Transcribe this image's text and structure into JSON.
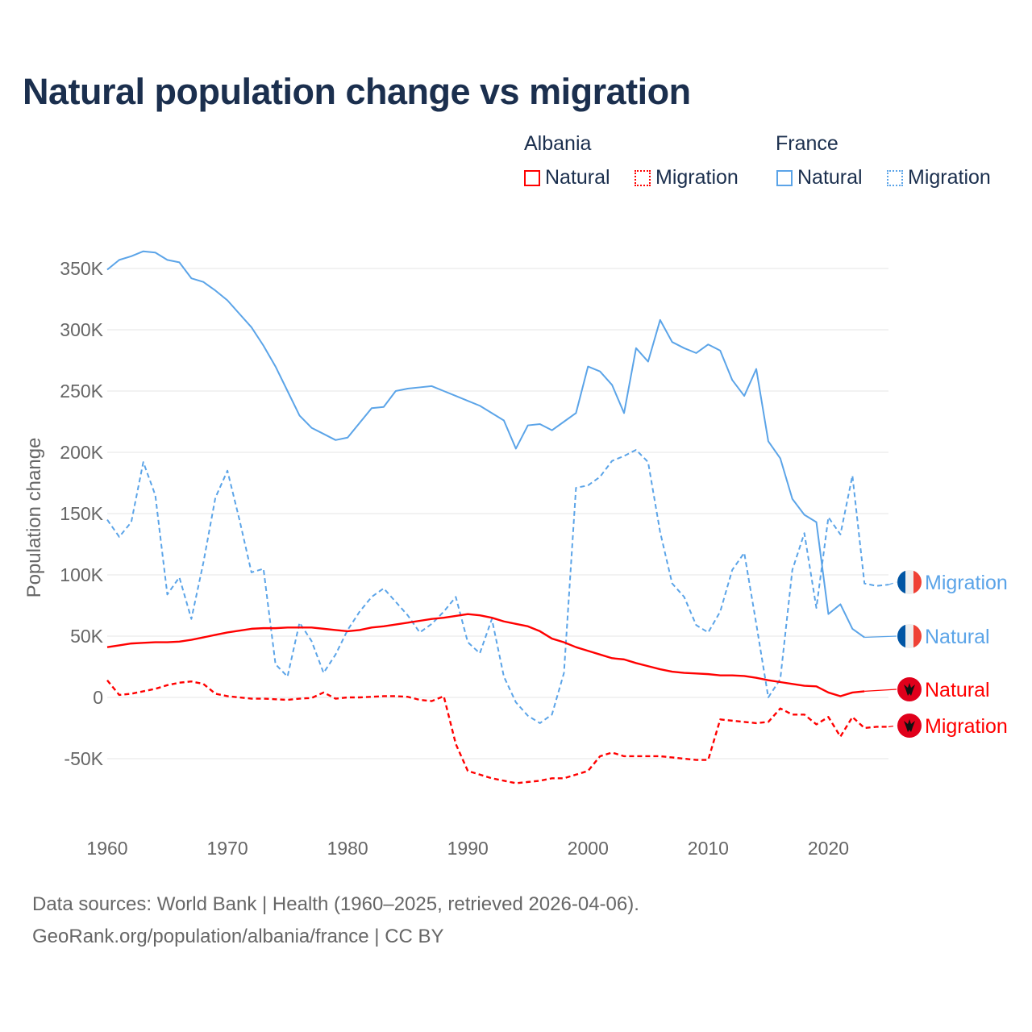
{
  "chart_data": {
    "type": "line",
    "title": "Natural population change vs migration",
    "xlabel": "",
    "ylabel": "Population change",
    "xlim": [
      1960,
      2025
    ],
    "ylim": [
      -100000,
      380000
    ],
    "x_ticks": [
      1960,
      1970,
      1980,
      1990,
      2000,
      2010,
      2020
    ],
    "x_tick_labels": [
      "1960",
      "1970",
      "1980",
      "1990",
      "2000",
      "2010",
      "2020"
    ],
    "y_ticks": [
      -50000,
      0,
      50000,
      100000,
      150000,
      200000,
      250000,
      300000,
      350000
    ],
    "y_tick_labels": [
      "-50K",
      "0",
      "50K",
      "100K",
      "150K",
      "200K",
      "250K",
      "300K",
      "350K"
    ],
    "grid": true,
    "legend_placement": "top-right",
    "legend": {
      "groups": [
        {
          "name": "Albania",
          "items": [
            "Natural",
            "Migration"
          ]
        },
        {
          "name": "France",
          "items": [
            "Natural",
            "Migration"
          ]
        }
      ]
    },
    "x_start": 1960,
    "series": [
      {
        "name": "France Natural",
        "country": "France",
        "label": "Natural",
        "color": "#5ba4e8",
        "dash": false,
        "values": [
          349,
          357,
          360,
          364,
          363,
          357,
          355,
          342,
          339,
          332,
          324,
          313,
          302,
          287,
          270,
          250,
          230,
          220,
          215,
          210,
          212,
          224,
          236,
          237,
          250,
          252,
          253,
          254,
          250,
          246,
          242,
          238,
          232,
          226,
          203,
          222,
          223,
          218,
          225,
          232,
          270,
          266,
          255,
          232,
          285,
          274,
          308,
          290,
          285,
          281,
          288,
          283,
          259,
          246,
          268,
          209,
          195,
          162,
          149,
          143,
          68,
          76,
          56,
          49
        ]
      },
      {
        "name": "France Migration",
        "country": "France",
        "label": "Migration",
        "color": "#5ba4e8",
        "dash": true,
        "values": [
          145,
          131,
          143,
          192,
          165,
          84,
          98,
          64,
          110,
          163,
          185,
          145,
          102,
          105,
          27,
          17,
          61,
          46,
          20,
          35,
          55,
          70,
          82,
          89,
          78,
          67,
          53,
          60,
          70,
          82,
          45,
          36,
          64,
          17,
          -4,
          -15,
          -21,
          -14,
          20,
          171,
          173,
          180,
          193,
          197,
          202,
          192,
          135,
          93,
          82,
          59,
          53,
          70,
          104,
          118,
          60,
          0,
          15,
          104,
          134,
          73,
          147,
          133,
          181,
          93,
          91,
          92
        ]
      },
      {
        "name": "Albania Natural",
        "country": "Albania",
        "label": "Natural",
        "color": "#ff0000",
        "dash": false,
        "values": [
          41,
          42.5,
          44,
          44.5,
          45,
          45,
          45.5,
          47,
          49,
          51,
          53,
          54.5,
          56,
          56.5,
          56.5,
          57,
          57,
          57,
          56,
          55,
          54,
          55,
          57,
          58,
          59.5,
          61,
          62.5,
          64,
          65,
          66.5,
          68,
          67,
          65,
          62,
          60,
          58,
          54,
          48,
          45,
          41,
          38,
          35,
          32,
          31,
          28,
          25.5,
          23,
          21,
          20,
          19.5,
          19,
          18,
          18,
          17.5,
          16,
          14,
          12.5,
          11,
          9.5,
          9,
          4,
          1,
          4,
          5
        ]
      },
      {
        "name": "Albania Migration",
        "country": "Albania",
        "label": "Migration",
        "color": "#ff0000",
        "dash": true,
        "values": [
          14,
          2,
          3,
          5,
          7,
          10,
          12,
          13,
          11,
          3,
          1,
          0,
          -1,
          -1,
          -1.5,
          -2,
          -1,
          -0.5,
          4,
          -1,
          0,
          0,
          0.5,
          1,
          1,
          0.5,
          -2,
          -3,
          1,
          -38,
          -60,
          -63,
          -66,
          -68,
          -70,
          -69,
          -68,
          -66,
          -66,
          -63,
          -60,
          -48,
          -45,
          -48,
          -48,
          -48,
          -48,
          -49,
          -50,
          -51,
          -51,
          -18,
          -19,
          -20,
          -21,
          -20,
          -9,
          -14,
          -14,
          -22,
          -16,
          -32,
          -16,
          -25,
          -24,
          -24
        ]
      }
    ],
    "units": "thousands"
  },
  "legend_titles": {
    "albania": "Albania",
    "france": "France"
  },
  "legend_labels": {
    "natural": "Natural",
    "migration": "Migration"
  },
  "colors": {
    "albania": "#ff0000",
    "france": "#5ba4e8",
    "title": "#1b2f4e",
    "grid": "#e6e6e6",
    "flag_albania": "#e0001b",
    "flag_france_blue": "#0055a4",
    "flag_france_red": "#ef4135"
  },
  "footer": {
    "line1": "Data sources: World Bank | Health (1960–2025, retrieved 2026-04-06).",
    "line2": "GeoRank.org/population/albania/france | CC BY"
  }
}
